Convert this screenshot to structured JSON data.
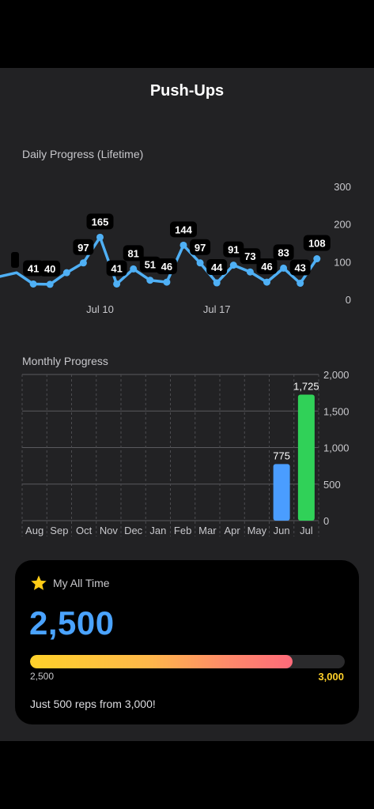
{
  "page": {
    "title": "Push-Ups"
  },
  "daily": {
    "label": "Daily Progress (Lifetime)",
    "y_ticks": [
      "300",
      "200",
      "100",
      "0"
    ],
    "x_ticks": [
      "Jul 10",
      "Jul 17"
    ]
  },
  "monthly": {
    "label": "Monthly Progress",
    "y_ticks": [
      "2,000",
      "1,500",
      "1,000",
      "500",
      "0"
    ]
  },
  "all_time": {
    "label": "My All Time",
    "total": "2,500",
    "min_label": "2,500",
    "goal_label": "3,000",
    "progress": 0.833,
    "message": "Just 500 reps from 3,000!",
    "icon": "star-icon"
  },
  "colors": {
    "accent": "#4aa3ff",
    "line": "#4fb0f5",
    "bar_blue": "#4a9dff",
    "bar_green": "#30d158",
    "gold": "#ffd12a"
  },
  "chart_data": [
    {
      "type": "line",
      "title": "Daily Progress (Lifetime)",
      "ylim": [
        0,
        300
      ],
      "x_ticks": [
        "Jul 10",
        "Jul 17"
      ],
      "values": [
        71,
        41,
        40,
        71,
        97,
        165,
        41,
        81,
        51,
        46,
        144,
        97,
        44,
        91,
        73,
        46,
        83,
        43,
        108
      ],
      "data_labels": [
        null,
        "41",
        "40",
        null,
        "97",
        "165",
        "41",
        "81",
        "51",
        "46",
        "144",
        "97",
        "44",
        "91",
        "73",
        "46",
        "83",
        "43",
        "108"
      ],
      "grid": false
    },
    {
      "type": "bar",
      "title": "Monthly Progress",
      "categories": [
        "Aug",
        "Sep",
        "Oct",
        "Nov",
        "Dec",
        "Jan",
        "Feb",
        "Mar",
        "Apr",
        "May",
        "Jun",
        "Jul"
      ],
      "values": [
        0,
        0,
        0,
        0,
        0,
        0,
        0,
        0,
        0,
        0,
        775,
        1725
      ],
      "value_labels": [
        "",
        "",
        "",
        "",
        "",
        "",
        "",
        "",
        "",
        "",
        "775",
        "1,725"
      ],
      "ylim": [
        0,
        2000
      ],
      "grid": true
    }
  ]
}
